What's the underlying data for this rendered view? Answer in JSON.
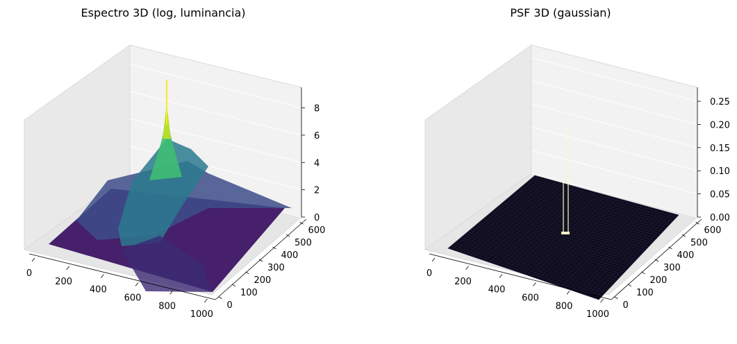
{
  "chart_data": [
    {
      "type": "surface3d",
      "title": "Espectro 3D (log, luminancia)",
      "colormap": "viridis",
      "x_ticks": [
        "0",
        "200",
        "400",
        "600",
        "800",
        "1000"
      ],
      "y_ticks": [
        "0",
        "100",
        "200",
        "300",
        "400",
        "500",
        "600"
      ],
      "z_ticks": [
        "0",
        "2",
        "4",
        "6",
        "8"
      ],
      "xlim": [
        0,
        1000
      ],
      "ylim": [
        0,
        650
      ],
      "zlim": [
        0,
        9.5
      ],
      "peak": {
        "x": 500,
        "y": 325,
        "z": 9.2
      },
      "grid": true
    },
    {
      "type": "surface3d",
      "title": "PSF 3D (gaussian)",
      "colormap": "magma",
      "x_ticks": [
        "0",
        "200",
        "400",
        "600",
        "800",
        "1000"
      ],
      "y_ticks": [
        "0",
        "100",
        "200",
        "300",
        "400",
        "500",
        "600"
      ],
      "z_ticks": [
        "0.00",
        "0.05",
        "0.10",
        "0.15",
        "0.20",
        "0.25"
      ],
      "xlim": [
        0,
        1000
      ],
      "ylim": [
        0,
        650
      ],
      "zlim": [
        0,
        0.28
      ],
      "peak": {
        "x": 500,
        "y": 325,
        "z": 0.26
      },
      "grid": true
    }
  ]
}
